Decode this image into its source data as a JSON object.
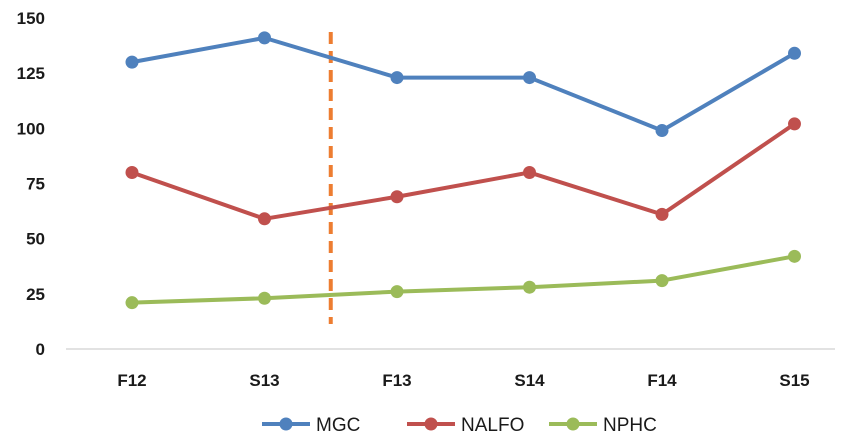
{
  "chart_data": {
    "type": "line",
    "title": "",
    "xlabel": "",
    "ylabel": "",
    "categories": [
      "F12",
      "S13",
      "F13",
      "S14",
      "F14",
      "S15"
    ],
    "ylim": [
      0,
      150
    ],
    "yticks": [
      0,
      25,
      50,
      75,
      100,
      125,
      150
    ],
    "ytick_labels": [
      "0",
      "25",
      "50",
      "75",
      "100",
      "125",
      "150"
    ],
    "grid": false,
    "legend_position": "bottom",
    "series": [
      {
        "name": "MGC",
        "color": "#4f81bd",
        "values": [
          130,
          141,
          123,
          123,
          99,
          134
        ]
      },
      {
        "name": "NALFO",
        "color": "#c0504d",
        "values": [
          80,
          59,
          69,
          80,
          61,
          102
        ]
      },
      {
        "name": "NPHC",
        "color": "#9bbb59",
        "values": [
          21,
          23,
          26,
          28,
          31,
          42
        ]
      }
    ],
    "annotations": [
      {
        "type": "vertical-dashed-line",
        "color": "#ed7d31",
        "between": [
          "S13",
          "F13"
        ],
        "x_category_position": 1.5
      }
    ]
  }
}
